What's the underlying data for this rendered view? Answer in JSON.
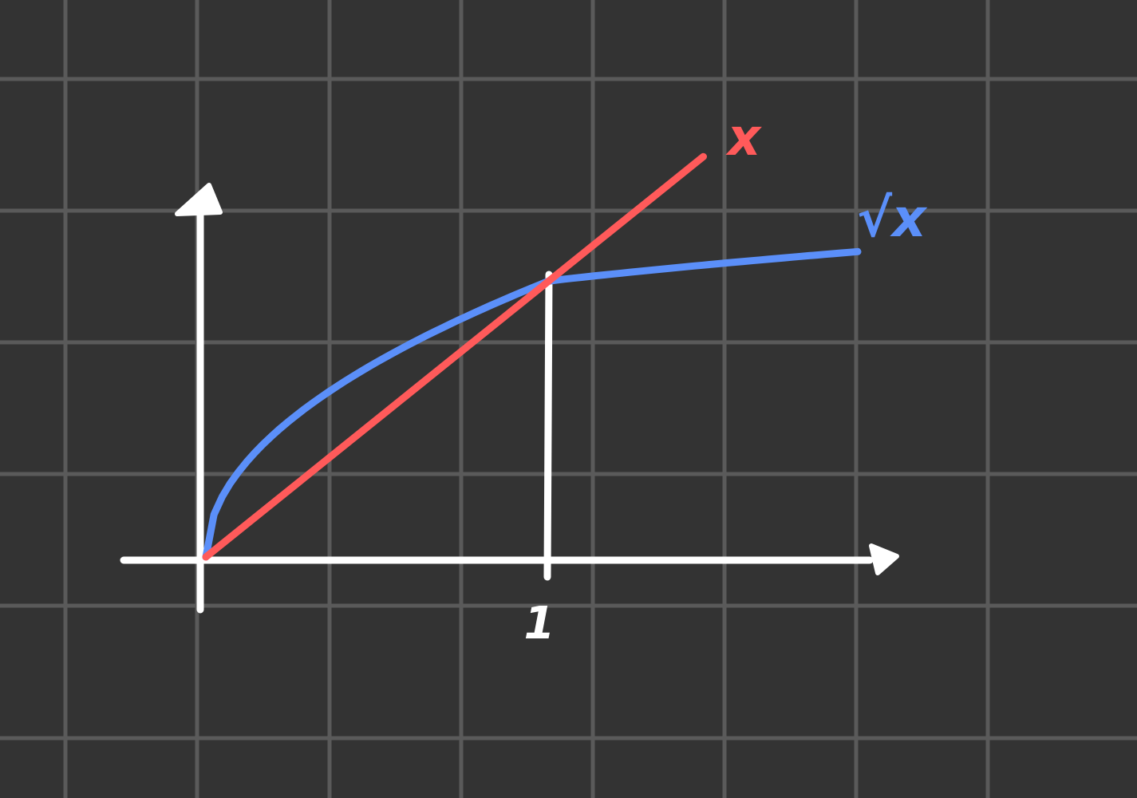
{
  "colors": {
    "background": "#333333",
    "grid": "#5a5a5a",
    "axis": "#ffffff",
    "line_x": "#ff5a5a",
    "curve_sqrt_x": "#5b8ff9"
  },
  "chart_data": {
    "type": "line",
    "title": "",
    "xlabel": "",
    "ylabel": "",
    "grid": true,
    "x_ticks": [
      {
        "value": 1,
        "label": "1"
      }
    ],
    "series": [
      {
        "name": "x",
        "color": "#ff5a5a",
        "function": "x",
        "x": [
          0,
          1.45
        ]
      },
      {
        "name": "√x",
        "color": "#5b8ff9",
        "function": "sqrt",
        "x": [
          0,
          1.9
        ]
      }
    ]
  }
}
